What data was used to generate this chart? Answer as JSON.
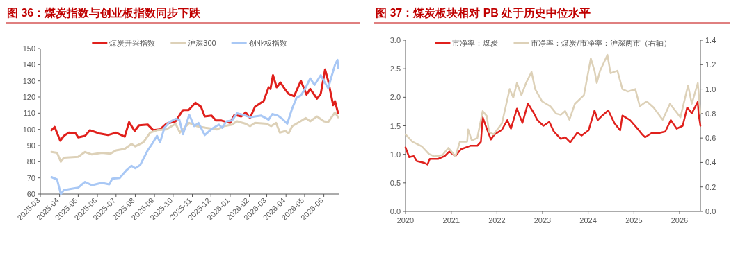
{
  "chart_data": [
    {
      "type": "line",
      "title": "图 36：煤炭指数与创业板指数同步下跌",
      "legend": "top",
      "xlim": [
        "2025-03-01",
        "2026-06-25"
      ],
      "xticks": [
        "2025-03",
        "2025-04",
        "2025-05",
        "2025-06",
        "2025-07",
        "2025-08",
        "2025-09",
        "2025-10",
        "2025-11",
        "2025-12",
        "2026-01",
        "2026-02",
        "2026-03",
        "2026-04",
        "2026-05",
        "2026-06"
      ],
      "ylim": [
        60,
        150
      ],
      "yticks": [
        60,
        70,
        80,
        90,
        100,
        110,
        120,
        130,
        140,
        150
      ],
      "series": [
        {
          "name": "煤炭开采指数",
          "color": "#e0201c",
          "x": [
            "2025-03-19",
            "2025-03-24",
            "2025-04-02",
            "2025-04-08",
            "2025-04-16",
            "2025-04-27",
            "2025-05-01",
            "2025-05-12",
            "2025-05-20",
            "2025-06-04",
            "2025-06-18",
            "2025-07-01",
            "2025-07-15",
            "2025-07-22",
            "2025-07-31",
            "2025-08-07",
            "2025-08-21",
            "2025-08-30",
            "2025-09-10",
            "2025-09-20",
            "2025-10-05",
            "2025-10-17",
            "2025-10-26",
            "2025-11-06",
            "2025-11-15",
            "2025-11-21",
            "2025-12-02",
            "2025-12-09",
            "2025-12-18",
            "2026-01-01",
            "2026-01-08",
            "2026-01-19",
            "2026-01-26",
            "2026-02-02",
            "2026-02-10",
            "2026-02-24",
            "2026-03-04",
            "2026-03-07",
            "2026-03-11",
            "2026-03-17",
            "2026-03-23",
            "2026-03-30",
            "2026-04-05",
            "2026-04-14",
            "2026-04-25",
            "2026-05-04",
            "2026-05-10",
            "2026-05-21",
            "2026-05-27",
            "2026-06-03",
            "2026-06-08",
            "2026-06-16",
            "2026-06-19",
            "2026-06-24"
          ],
          "values": [
            99.5,
            101.5,
            93,
            96,
            98,
            97.5,
            95,
            96,
            99.5,
            97.5,
            96.5,
            98,
            95.5,
            104.5,
            99,
            102.5,
            103,
            99.5,
            100,
            103.5,
            105,
            112,
            112,
            116.5,
            114,
            108,
            108.5,
            105.5,
            105.5,
            104,
            109,
            108,
            110.5,
            107,
            114,
            117.5,
            126,
            125,
            133.5,
            126,
            129,
            125,
            122,
            120.5,
            130,
            121.5,
            125,
            119,
            122,
            137,
            130,
            115,
            117.5,
            110
          ]
        },
        {
          "name": "沪深300",
          "color": "#ddd1b8",
          "x": [
            "2025-03-19",
            "2025-03-28",
            "2025-04-03",
            "2025-04-08",
            "2025-05-01",
            "2025-05-12",
            "2025-05-23",
            "2025-06-08",
            "2025-06-22",
            "2025-07-01",
            "2025-07-15",
            "2025-07-26",
            "2025-08-01",
            "2025-08-14",
            "2025-08-25",
            "2025-09-05",
            "2025-09-20",
            "2025-10-05",
            "2025-10-12",
            "2025-10-27",
            "2025-11-08",
            "2025-11-22",
            "2025-12-11",
            "2025-12-22",
            "2026-01-04",
            "2026-01-12",
            "2026-01-26",
            "2026-02-02",
            "2026-02-10",
            "2026-03-01",
            "2026-03-08",
            "2026-03-16",
            "2026-03-22",
            "2026-03-31",
            "2026-04-05",
            "2026-04-11",
            "2026-04-22",
            "2026-05-03",
            "2026-05-10",
            "2026-05-21",
            "2026-06-01",
            "2026-06-08",
            "2026-06-19",
            "2026-06-24"
          ],
          "values": [
            86,
            85.5,
            80,
            82.5,
            83,
            86,
            84.5,
            85.5,
            85,
            87,
            88,
            91,
            89.5,
            92,
            98,
            99.5,
            100,
            103.5,
            98,
            104,
            102,
            101,
            100,
            102,
            103,
            105,
            103.5,
            102,
            104,
            103.5,
            102,
            104,
            98,
            99,
            97.5,
            102,
            104.5,
            107,
            105,
            108,
            105,
            104.5,
            110.5,
            107.5
          ]
        },
        {
          "name": "创业板指数",
          "color": "#a9c8f5",
          "x": [
            "2025-03-19",
            "2025-03-28",
            "2025-04-03",
            "2025-04-08",
            "2025-04-24",
            "2025-05-01",
            "2025-05-12",
            "2025-05-23",
            "2025-06-08",
            "2025-06-20",
            "2025-06-25",
            "2025-07-07",
            "2025-07-17",
            "2025-07-26",
            "2025-08-01",
            "2025-08-09",
            "2025-08-21",
            "2025-08-29",
            "2025-09-05",
            "2025-09-10",
            "2025-09-17",
            "2025-09-25",
            "2025-10-05",
            "2025-10-11",
            "2025-10-17",
            "2025-10-27",
            "2025-11-04",
            "2025-11-11",
            "2025-11-21",
            "2025-12-03",
            "2025-12-14",
            "2025-12-19",
            "2025-12-26",
            "2026-01-04",
            "2026-01-12",
            "2026-01-22",
            "2026-02-02",
            "2026-02-10",
            "2026-02-20",
            "2026-03-04",
            "2026-03-10",
            "2026-03-19",
            "2026-03-26",
            "2026-04-03",
            "2026-04-11",
            "2026-04-18",
            "2026-04-25",
            "2026-05-03",
            "2026-05-10",
            "2026-05-17",
            "2026-05-27",
            "2026-06-01",
            "2026-06-08",
            "2026-06-19",
            "2026-06-23",
            "2026-06-24"
          ],
          "values": [
            70.5,
            69,
            60,
            62.5,
            63.5,
            64,
            67.5,
            65.5,
            67,
            66,
            69.5,
            70,
            74.5,
            77.5,
            76,
            78,
            87,
            91.5,
            96,
            92,
            101,
            104.5,
            106.5,
            106,
            97,
            109,
            102,
            104,
            96.5,
            100.5,
            103,
            101,
            105,
            105.5,
            110,
            109,
            107.5,
            108,
            108.5,
            106,
            109.5,
            108.5,
            106.5,
            103.5,
            113,
            119.5,
            121,
            126,
            131.5,
            127.5,
            133.5,
            130,
            125.5,
            140,
            143,
            138
          ]
        }
      ]
    },
    {
      "type": "line",
      "title": "图 37：煤炭板块相对 PB 处于历史中位水平",
      "legend": "top",
      "xlim": [
        "2020-01-01",
        "2026-06-17"
      ],
      "xticks": [
        "2020",
        "2021",
        "2022",
        "2023",
        "2024",
        "2025",
        "2026"
      ],
      "ylim": [
        0,
        3
      ],
      "yticks": [
        {
          "value": 0,
          "label": "0.0"
        },
        0.5,
        {
          "value": 1,
          "label": "1.0"
        },
        1.5,
        {
          "value": 2,
          "label": "2.0"
        },
        2.5,
        {
          "value": 3,
          "label": "3.0"
        }
      ],
      "y2lim": [
        0,
        1.4
      ],
      "y2ticks": [
        {
          "value": 0,
          "label": "0.0"
        },
        0.2,
        0.4,
        0.6,
        0.8,
        {
          "value": 1,
          "label": "1.0"
        },
        1.2,
        1.4
      ],
      "series": [
        {
          "name": "市净率：煤炭",
          "color": "#e0201c",
          "x": [
            "2020-01-01",
            "2020-01-30",
            "2020-03-07",
            "2020-04-01",
            "2020-05-30",
            "2020-06-25",
            "2020-07-13",
            "2020-09-17",
            "2020-11-10",
            "2020-12-16",
            "2021-02-03",
            "2021-03-20",
            "2021-06-03",
            "2021-07-28",
            "2021-08-26",
            "2021-09-09",
            "2021-10-12",
            "2021-11-14",
            "2021-12-13",
            "2022-02-10",
            "2022-03-25",
            "2022-04-23",
            "2022-06-10",
            "2022-07-24",
            "2022-09-06",
            "2022-10-16",
            "2022-11-21",
            "2023-01-08",
            "2023-02-24",
            "2023-04-01",
            "2023-05-27",
            "2023-07-01",
            "2023-08-11",
            "2023-10-05",
            "2023-11-10",
            "2024-01-04",
            "2024-02-21",
            "2024-03-17",
            "2024-04-23",
            "2024-06-10",
            "2024-07-28",
            "2024-09-13",
            "2024-10-01",
            "2024-12-01",
            "2025-01-30",
            "2025-03-07",
            "2025-04-01",
            "2025-05-20",
            "2025-07-13",
            "2025-09-09",
            "2025-10-23",
            "2025-12-09",
            "2026-01-26",
            "2026-03-03",
            "2026-04-09",
            "2026-05-27",
            "2026-06-03",
            "2026-06-17"
          ],
          "values": [
            1.12,
            0.95,
            0.97,
            0.88,
            0.85,
            0.82,
            0.92,
            0.92,
            0.97,
            1.05,
            0.97,
            1.09,
            1.15,
            1.15,
            1.22,
            1.65,
            1.45,
            1.26,
            1.35,
            1.43,
            1.6,
            1.45,
            1.8,
            1.55,
            1.89,
            1.75,
            1.6,
            1.5,
            1.57,
            1.4,
            1.27,
            1.3,
            1.21,
            1.38,
            1.33,
            1.42,
            1.77,
            1.6,
            1.68,
            1.77,
            1.55,
            1.42,
            1.68,
            1.6,
            1.45,
            1.35,
            1.3,
            1.37,
            1.37,
            1.4,
            1.6,
            1.45,
            1.5,
            1.82,
            1.72,
            1.92,
            1.7,
            1.5
          ]
        },
        {
          "name": "市净率：煤炭/市净率：沪深两市（右轴）",
          "color": "#ddd1b8",
          "axis": "y2",
          "x": [
            "2020-01-01",
            "2020-02-24",
            "2020-05-12",
            "2020-07-06",
            "2020-08-19",
            "2020-10-23",
            "2020-12-09",
            "2021-02-03",
            "2021-03-11",
            "2021-05-08",
            "2021-05-16",
            "2021-06-14",
            "2021-07-28",
            "2021-09-09",
            "2021-10-12",
            "2021-10-30",
            "2021-12-06",
            "2022-02-10",
            "2022-04-13",
            "2022-05-12",
            "2022-06-10",
            "2022-07-16",
            "2022-08-22",
            "2022-10-05",
            "2022-11-03",
            "2022-12-28",
            "2023-03-04",
            "2023-04-20",
            "2023-05-27",
            "2023-07-01",
            "2023-08-04",
            "2023-09-17",
            "2023-11-28",
            "2024-01-22",
            "2024-02-21",
            "2024-03-10",
            "2024-04-05",
            "2024-06-03",
            "2024-06-28",
            "2024-08-22",
            "2024-10-01",
            "2024-11-14",
            "2025-01-12",
            "2025-02-17",
            "2025-04-13",
            "2025-06-07",
            "2025-08-19",
            "2025-10-16",
            "2026-01-08",
            "2026-03-10",
            "2026-04-09",
            "2026-05-27",
            "2026-06-17"
          ],
          "values": [
            0.63,
            0.57,
            0.53,
            0.47,
            0.45,
            0.46,
            0.52,
            0.45,
            0.57,
            0.57,
            0.67,
            0.58,
            0.6,
            0.82,
            0.78,
            0.65,
            0.63,
            0.72,
            1.0,
            0.93,
            1.05,
            0.95,
            1.05,
            1.14,
            1.0,
            0.9,
            0.86,
            0.8,
            0.79,
            0.82,
            0.75,
            0.88,
            0.95,
            1.25,
            1.15,
            1.05,
            1.15,
            1.28,
            1.13,
            1.15,
            1.0,
            0.98,
            1.0,
            0.86,
            0.9,
            0.85,
            0.75,
            0.88,
            0.77,
            1.03,
            0.88,
            1.05,
            0.8
          ]
        }
      ]
    }
  ]
}
